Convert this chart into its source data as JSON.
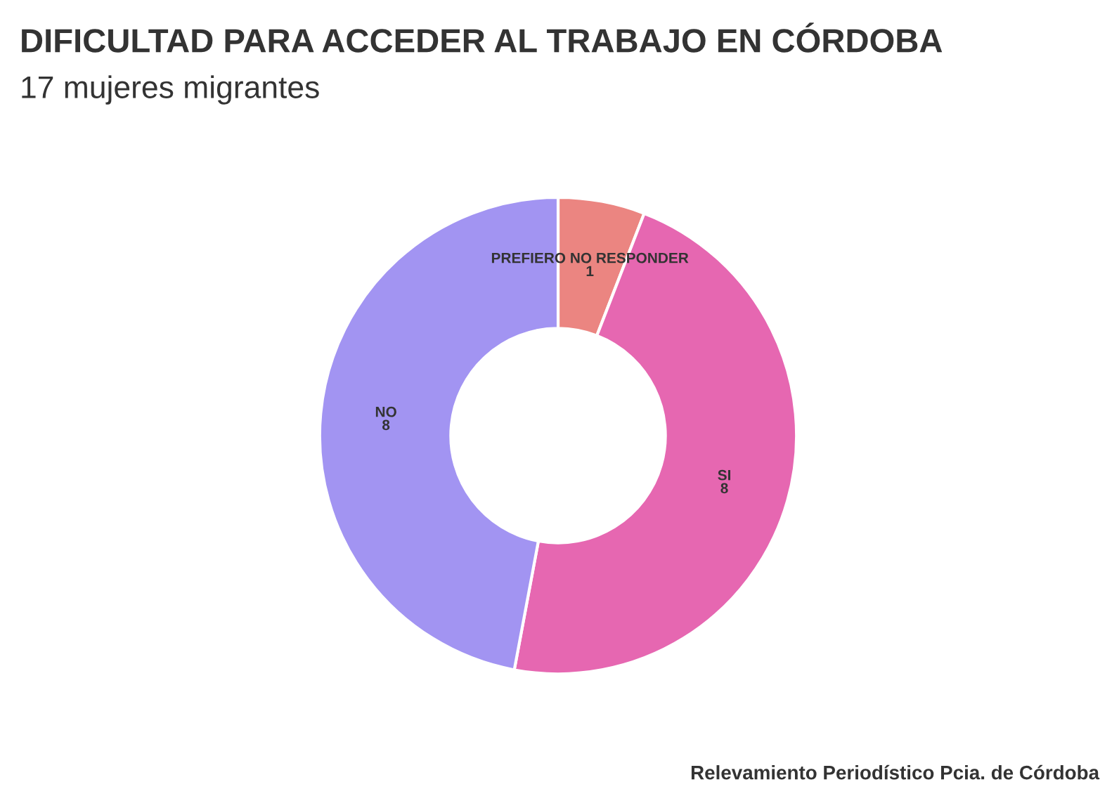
{
  "chart_data": {
    "type": "donut",
    "title": "DIFICULTAD PARA ACCEDER AL TRABAJO EN CÓRDOBA",
    "subtitle": "17 mujeres migrantes",
    "categories": [
      "PREFIERO NO RESPONDER",
      "SI",
      "NO"
    ],
    "values": [
      1,
      8,
      8
    ],
    "colors": [
      "#eb8581",
      "#e667b1",
      "#a294f2"
    ],
    "data_labels": true,
    "annotations": [
      "Relevamiento Periodístico Pcia. de Córdoba"
    ]
  }
}
